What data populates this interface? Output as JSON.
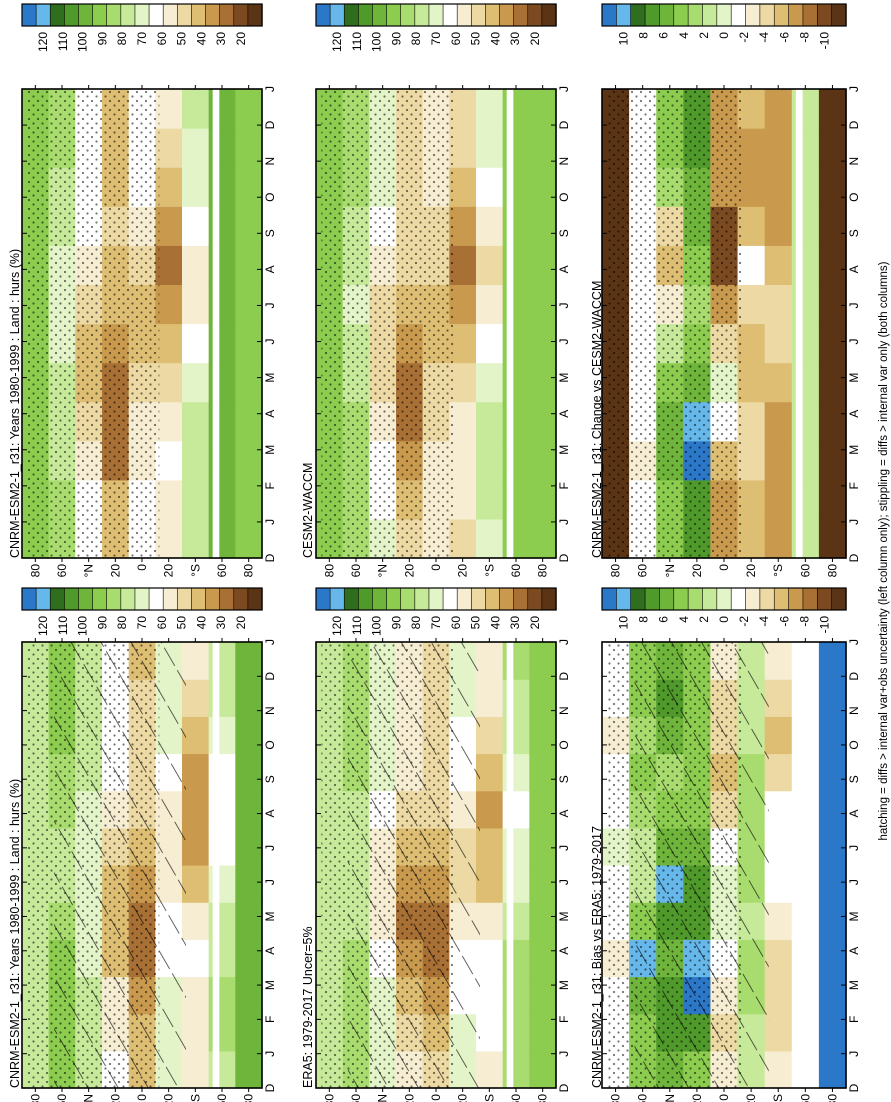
{
  "figure": {
    "footnote": "hatching = diffs > internal var+obs uncertainty (left column only); stippling = diffs > internal var only (both columns)"
  },
  "colors": {
    "abs_scale": [
      "#2b77c8",
      "#66b8ea",
      "#2e6e1e",
      "#4f9a2a",
      "#6fb53b",
      "#8ccc4f",
      "#a9dc6e",
      "#c6ea99",
      "#e3f4c8",
      "#ffffff",
      "#f6edd2",
      "#ecd9a3",
      "#ddbe73",
      "#c99a4e",
      "#a87034",
      "#7c4a20",
      "#5a3414"
    ],
    "diff_scale": [
      "#2b77c8",
      "#66b8ea",
      "#2e6e1e",
      "#4f9a2a",
      "#6fb53b",
      "#8ccc4f",
      "#a9dc6e",
      "#c6ea99",
      "#e3f4c8",
      "#ffffff",
      "#f6edd2",
      "#ecd9a3",
      "#ddbe73",
      "#c99a4e",
      "#a87034",
      "#7c4a20",
      "#5a3414"
    ]
  },
  "chart_data": [
    {
      "id": "model-abs",
      "type": "heatmap",
      "title": "CNRM-ESM2-1_r31: Years 1980-1999 : Land : hurs (%)",
      "months": [
        "J",
        "F",
        "M",
        "A",
        "M",
        "J",
        "J",
        "A",
        "S",
        "O",
        "N",
        "D",
        "J"
      ],
      "extra_left_label": "D",
      "lat_ticks": [
        "80",
        "60",
        "°N",
        "20",
        "0",
        "20",
        "°S",
        "60",
        "80"
      ],
      "colorbar_labels": [
        "120",
        "110",
        "100",
        "90",
        "80",
        "70",
        "60",
        "50",
        "40",
        "30",
        "20"
      ],
      "values_lat_by_month": [
        [
          75,
          75,
          75,
          75,
          75,
          75,
          75,
          75,
          75,
          75,
          75,
          75
        ],
        [
          88,
          90,
          90,
          88,
          85,
          80,
          80,
          82,
          85,
          88,
          90,
          90
        ],
        [
          80,
          80,
          78,
          72,
          70,
          68,
          70,
          72,
          76,
          80,
          80,
          80
        ],
        [
          60,
          58,
          55,
          45,
          40,
          42,
          48,
          55,
          60,
          60,
          60,
          60
        ],
        [
          45,
          40,
          35,
          30,
          32,
          38,
          45,
          50,
          52,
          50,
          48,
          45
        ],
        [
          70,
          70,
          68,
          65,
          60,
          55,
          55,
          58,
          65,
          68,
          70,
          70
        ],
        [
          55,
          55,
          58,
          60,
          55,
          45,
          38,
          35,
          38,
          45,
          50,
          55
        ],
        [
          80,
          82,
          82,
          80,
          78,
          70,
          65,
          60,
          65,
          72,
          78,
          80
        ],
        [
          95,
          95,
          95,
          95,
          95,
          95,
          95,
          95,
          95,
          95,
          95,
          95
        ]
      ],
      "hatching": true,
      "stippling": true
    },
    {
      "id": "model2-abs",
      "type": "heatmap",
      "title": "CNRM-ESM2-1_r31: Years 1980-1999 : Land : hurs (%)",
      "months": [
        "J",
        "F",
        "M",
        "A",
        "M",
        "J",
        "J",
        "A",
        "S",
        "O",
        "N",
        "D",
        "J"
      ],
      "extra_left_label": "D",
      "lat_ticks": [
        "80",
        "60",
        "°N",
        "20",
        "0",
        "20",
        "°S",
        "60",
        "80"
      ],
      "colorbar_labels": [
        "120",
        "110",
        "100",
        "90",
        "80",
        "70",
        "60",
        "50",
        "40",
        "30",
        "20"
      ],
      "values_lat_by_month": [
        [
          88,
          88,
          88,
          88,
          88,
          88,
          88,
          88,
          88,
          88,
          88,
          88
        ],
        [
          82,
          82,
          80,
          78,
          75,
          70,
          68,
          70,
          75,
          80,
          82,
          82
        ],
        [
          65,
          62,
          58,
          50,
          45,
          45,
          50,
          55,
          60,
          65,
          65,
          65
        ],
        [
          45,
          40,
          32,
          28,
          30,
          35,
          40,
          45,
          48,
          45,
          45,
          45
        ],
        [
          60,
          60,
          58,
          55,
          50,
          45,
          45,
          48,
          55,
          60,
          60,
          60
        ],
        [
          55,
          58,
          60,
          58,
          50,
          42,
          35,
          32,
          35,
          42,
          50,
          55
        ],
        [
          75,
          78,
          80,
          78,
          72,
          65,
          58,
          55,
          60,
          68,
          72,
          75
        ],
        [
          95,
          95,
          95,
          95,
          95,
          95,
          95,
          95,
          95,
          95,
          95,
          95
        ],
        [
          88,
          88,
          88,
          88,
          88,
          88,
          88,
          88,
          88,
          88,
          88,
          88
        ]
      ],
      "hatching": false,
      "stippling": true
    },
    {
      "id": "obs-abs",
      "type": "heatmap",
      "title": "ERA5: 1979-2017 Uncer=5%",
      "months": [
        "J",
        "F",
        "M",
        "A",
        "M",
        "J",
        "J",
        "A",
        "S",
        "O",
        "N",
        "D",
        "J"
      ],
      "extra_left_label": "D",
      "lat_ticks": [
        "80",
        "60",
        "°N",
        "20",
        "0",
        "20",
        "°S",
        "60",
        "80"
      ],
      "colorbar_labels": [
        "120",
        "110",
        "100",
        "90",
        "80",
        "70",
        "60",
        "50",
        "40",
        "30",
        "20"
      ],
      "values_lat_by_month": [
        [
          80,
          80,
          80,
          80,
          80,
          80,
          80,
          80,
          80,
          80,
          80,
          80
        ],
        [
          85,
          85,
          85,
          82,
          80,
          78,
          78,
          80,
          82,
          85,
          85,
          85
        ],
        [
          72,
          70,
          68,
          62,
          58,
          56,
          58,
          62,
          68,
          72,
          72,
          72
        ],
        [
          55,
          50,
          42,
          35,
          32,
          35,
          42,
          50,
          55,
          55,
          55,
          55
        ],
        [
          48,
          45,
          38,
          32,
          32,
          38,
          45,
          50,
          52,
          50,
          50,
          48
        ],
        [
          68,
          68,
          65,
          62,
          58,
          52,
          52,
          55,
          62,
          66,
          68,
          68
        ],
        [
          58,
          60,
          62,
          60,
          55,
          45,
          40,
          38,
          42,
          48,
          54,
          58
        ],
        [
          82,
          84,
          84,
          82,
          78,
          72,
          68,
          65,
          70,
          76,
          80,
          82
        ],
        [
          92,
          92,
          92,
          92,
          92,
          92,
          92,
          92,
          92,
          92,
          92,
          92
        ]
      ],
      "hatching": true,
      "stippling": true
    },
    {
      "id": "model2-name",
      "type": "heatmap",
      "title": "CESM2-WACCM",
      "months": [
        "J",
        "F",
        "M",
        "A",
        "M",
        "J",
        "J",
        "A",
        "S",
        "O",
        "N",
        "D",
        "J"
      ],
      "extra_left_label": "D",
      "lat_ticks": [
        "80",
        "60",
        "°N",
        "20",
        "0",
        "20",
        "°S",
        "60",
        "80"
      ],
      "colorbar_labels": [
        "120",
        "110",
        "100",
        "90",
        "80",
        "70",
        "60",
        "50",
        "40",
        "30",
        "20"
      ],
      "values_lat_by_month": [
        [
          90,
          90,
          90,
          90,
          90,
          90,
          90,
          90,
          90,
          90,
          90,
          90
        ],
        [
          85,
          85,
          84,
          82,
          78,
          74,
          72,
          74,
          78,
          82,
          85,
          85
        ],
        [
          68,
          66,
          62,
          55,
          50,
          48,
          52,
          58,
          62,
          68,
          68,
          68
        ],
        [
          48,
          44,
          36,
          30,
          30,
          34,
          40,
          46,
          50,
          48,
          48,
          48
        ],
        [
          58,
          58,
          56,
          52,
          48,
          42,
          42,
          46,
          52,
          58,
          58,
          58
        ],
        [
          52,
          55,
          58,
          56,
          48,
          40,
          34,
          30,
          34,
          40,
          48,
          52
        ],
        [
          72,
          75,
          78,
          76,
          70,
          62,
          56,
          52,
          58,
          66,
          70,
          72
        ],
        [
          94,
          94,
          94,
          94,
          94,
          94,
          94,
          94,
          94,
          94,
          94,
          94
        ],
        [
          90,
          90,
          90,
          90,
          90,
          90,
          90,
          90,
          90,
          90,
          90,
          90
        ]
      ],
      "hatching": false,
      "stippling": true
    },
    {
      "id": "bias",
      "type": "heatmap",
      "title": "CNRM-ESM2-1_r31: Bias vs ERA5: 1979-2017",
      "months": [
        "J",
        "F",
        "M",
        "A",
        "M",
        "J",
        "J",
        "A",
        "S",
        "O",
        "N",
        "D",
        "J"
      ],
      "extra_left_label": "D",
      "lat_ticks": [
        "80",
        "60",
        "°N",
        "20",
        "0",
        "20",
        "°S",
        "60",
        "80"
      ],
      "colorbar_labels": [
        "10",
        "8",
        "6",
        "4",
        "2",
        "0",
        "-2",
        "-4",
        "-6",
        "-8",
        "-10"
      ],
      "values_lat_by_month": [
        [
          -2,
          -2,
          -1,
          -3,
          -2,
          -1,
          0,
          -1,
          -2,
          -3,
          -2,
          -2
        ],
        [
          4,
          4,
          6,
          10,
          4,
          2,
          2,
          3,
          4,
          3,
          4,
          4
        ],
        [
          6,
          7,
          8,
          6,
          8,
          10,
          6,
          4,
          3,
          6,
          8,
          6
        ],
        [
          5,
          8,
          13,
          10,
          8,
          7,
          6,
          5,
          5,
          5,
          5,
          5
        ],
        [
          -3,
          -5,
          -3,
          -2,
          0,
          0,
          -2,
          -4,
          -6,
          -5,
          -4,
          -3
        ],
        [
          2,
          2,
          3,
          3,
          2,
          3,
          3,
          3,
          3,
          2,
          2,
          2
        ],
        [
          -3,
          -5,
          -4,
          -4,
          -3,
          -2,
          -2,
          -2,
          -4,
          -6,
          -4,
          -3
        ],
        [
          -1,
          -2,
          -2,
          -2,
          -1,
          -1,
          -1,
          -1,
          -1,
          -1,
          -1,
          -1
        ],
        [
          12,
          12,
          12,
          12,
          12,
          12,
          12,
          12,
          12,
          12,
          12,
          12
        ]
      ],
      "hatching": true,
      "stippling": true
    },
    {
      "id": "change",
      "type": "heatmap",
      "title": "CNRM-ESM2-1_r31: Change vs CESM2-WACCM",
      "months": [
        "J",
        "F",
        "M",
        "A",
        "M",
        "J",
        "J",
        "A",
        "S",
        "O",
        "N",
        "D",
        "J"
      ],
      "extra_left_label": "D",
      "lat_ticks": [
        "80",
        "60",
        "°N",
        "20",
        "0",
        "20",
        "°S",
        "60",
        "80"
      ],
      "colorbar_labels": [
        "10",
        "8",
        "6",
        "4",
        "2",
        "0",
        "-2",
        "-4",
        "-6",
        "-8",
        "-10"
      ],
      "values_lat_by_month": [
        [
          -14,
          -14,
          -14,
          -14,
          -14,
          -14,
          -14,
          -14,
          -14,
          -14,
          -14,
          -14
        ],
        [
          -2,
          -2,
          -3,
          -2,
          -1,
          -1,
          -1,
          -1,
          -1,
          -1,
          -2,
          -2
        ],
        [
          4,
          4,
          6,
          6,
          4,
          2,
          -3,
          -6,
          -5,
          3,
          4,
          4
        ],
        [
          8,
          8,
          12,
          10,
          6,
          4,
          3,
          4,
          6,
          6,
          7,
          8
        ],
        [
          -8,
          -8,
          -6,
          -2,
          0,
          -4,
          -8,
          -10,
          -10,
          -8,
          -8,
          -8
        ],
        [
          -6,
          -6,
          -4,
          -4,
          -6,
          -6,
          -4,
          -2,
          -6,
          -8,
          -8,
          -6
        ],
        [
          -8,
          -8,
          -8,
          -8,
          -6,
          -4,
          -4,
          -6,
          -8,
          -8,
          -8,
          -8
        ],
        [
          2,
          2,
          2,
          2,
          2,
          2,
          2,
          2,
          2,
          2,
          2,
          2
        ],
        [
          -12,
          -12,
          -12,
          -12,
          -12,
          -12,
          -12,
          -12,
          -12,
          -12,
          -12,
          -12
        ]
      ],
      "hatching": false,
      "stippling": true
    }
  ]
}
